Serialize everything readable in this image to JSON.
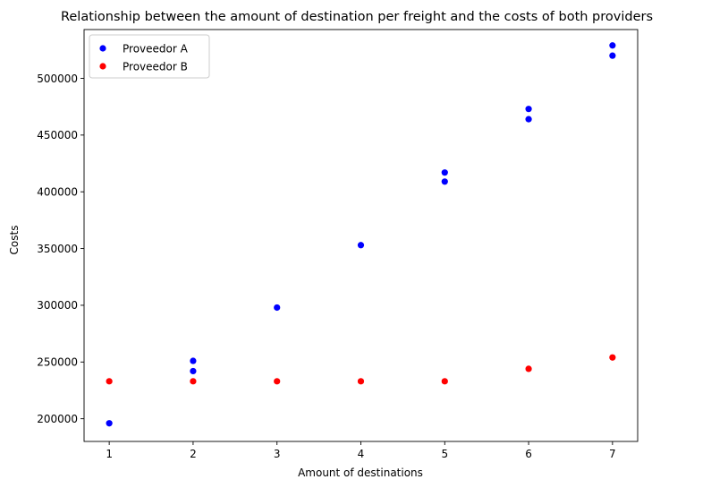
{
  "chart_data": {
    "type": "scatter",
    "title": "Relationship between the amount of destination per freight and the costs of both providers",
    "xlabel": "Amount of destinations",
    "ylabel": "Costs",
    "xlim": [
      0.7,
      7.3
    ],
    "ylim": [
      180000,
      543000
    ],
    "x_ticks": [
      1,
      2,
      3,
      4,
      5,
      6,
      7
    ],
    "y_ticks": [
      200000,
      250000,
      300000,
      350000,
      400000,
      450000,
      500000
    ],
    "grid": false,
    "legend_position": "upper-left",
    "series": [
      {
        "name": "Proveedor A",
        "color": "#0000ff",
        "points": [
          {
            "x": 1,
            "y": 196000
          },
          {
            "x": 2,
            "y": 242000
          },
          {
            "x": 2,
            "y": 251000
          },
          {
            "x": 3,
            "y": 298000
          },
          {
            "x": 4,
            "y": 353000
          },
          {
            "x": 5,
            "y": 409000
          },
          {
            "x": 5,
            "y": 417000
          },
          {
            "x": 6,
            "y": 464000
          },
          {
            "x": 6,
            "y": 473000
          },
          {
            "x": 7,
            "y": 520000
          },
          {
            "x": 7,
            "y": 529000
          }
        ]
      },
      {
        "name": "Proveedor B",
        "color": "#ff0000",
        "points": [
          {
            "x": 1,
            "y": 233000
          },
          {
            "x": 2,
            "y": 233000
          },
          {
            "x": 3,
            "y": 233000
          },
          {
            "x": 4,
            "y": 233000
          },
          {
            "x": 5,
            "y": 233000
          },
          {
            "x": 6,
            "y": 244000
          },
          {
            "x": 7,
            "y": 254000
          }
        ]
      }
    ]
  }
}
